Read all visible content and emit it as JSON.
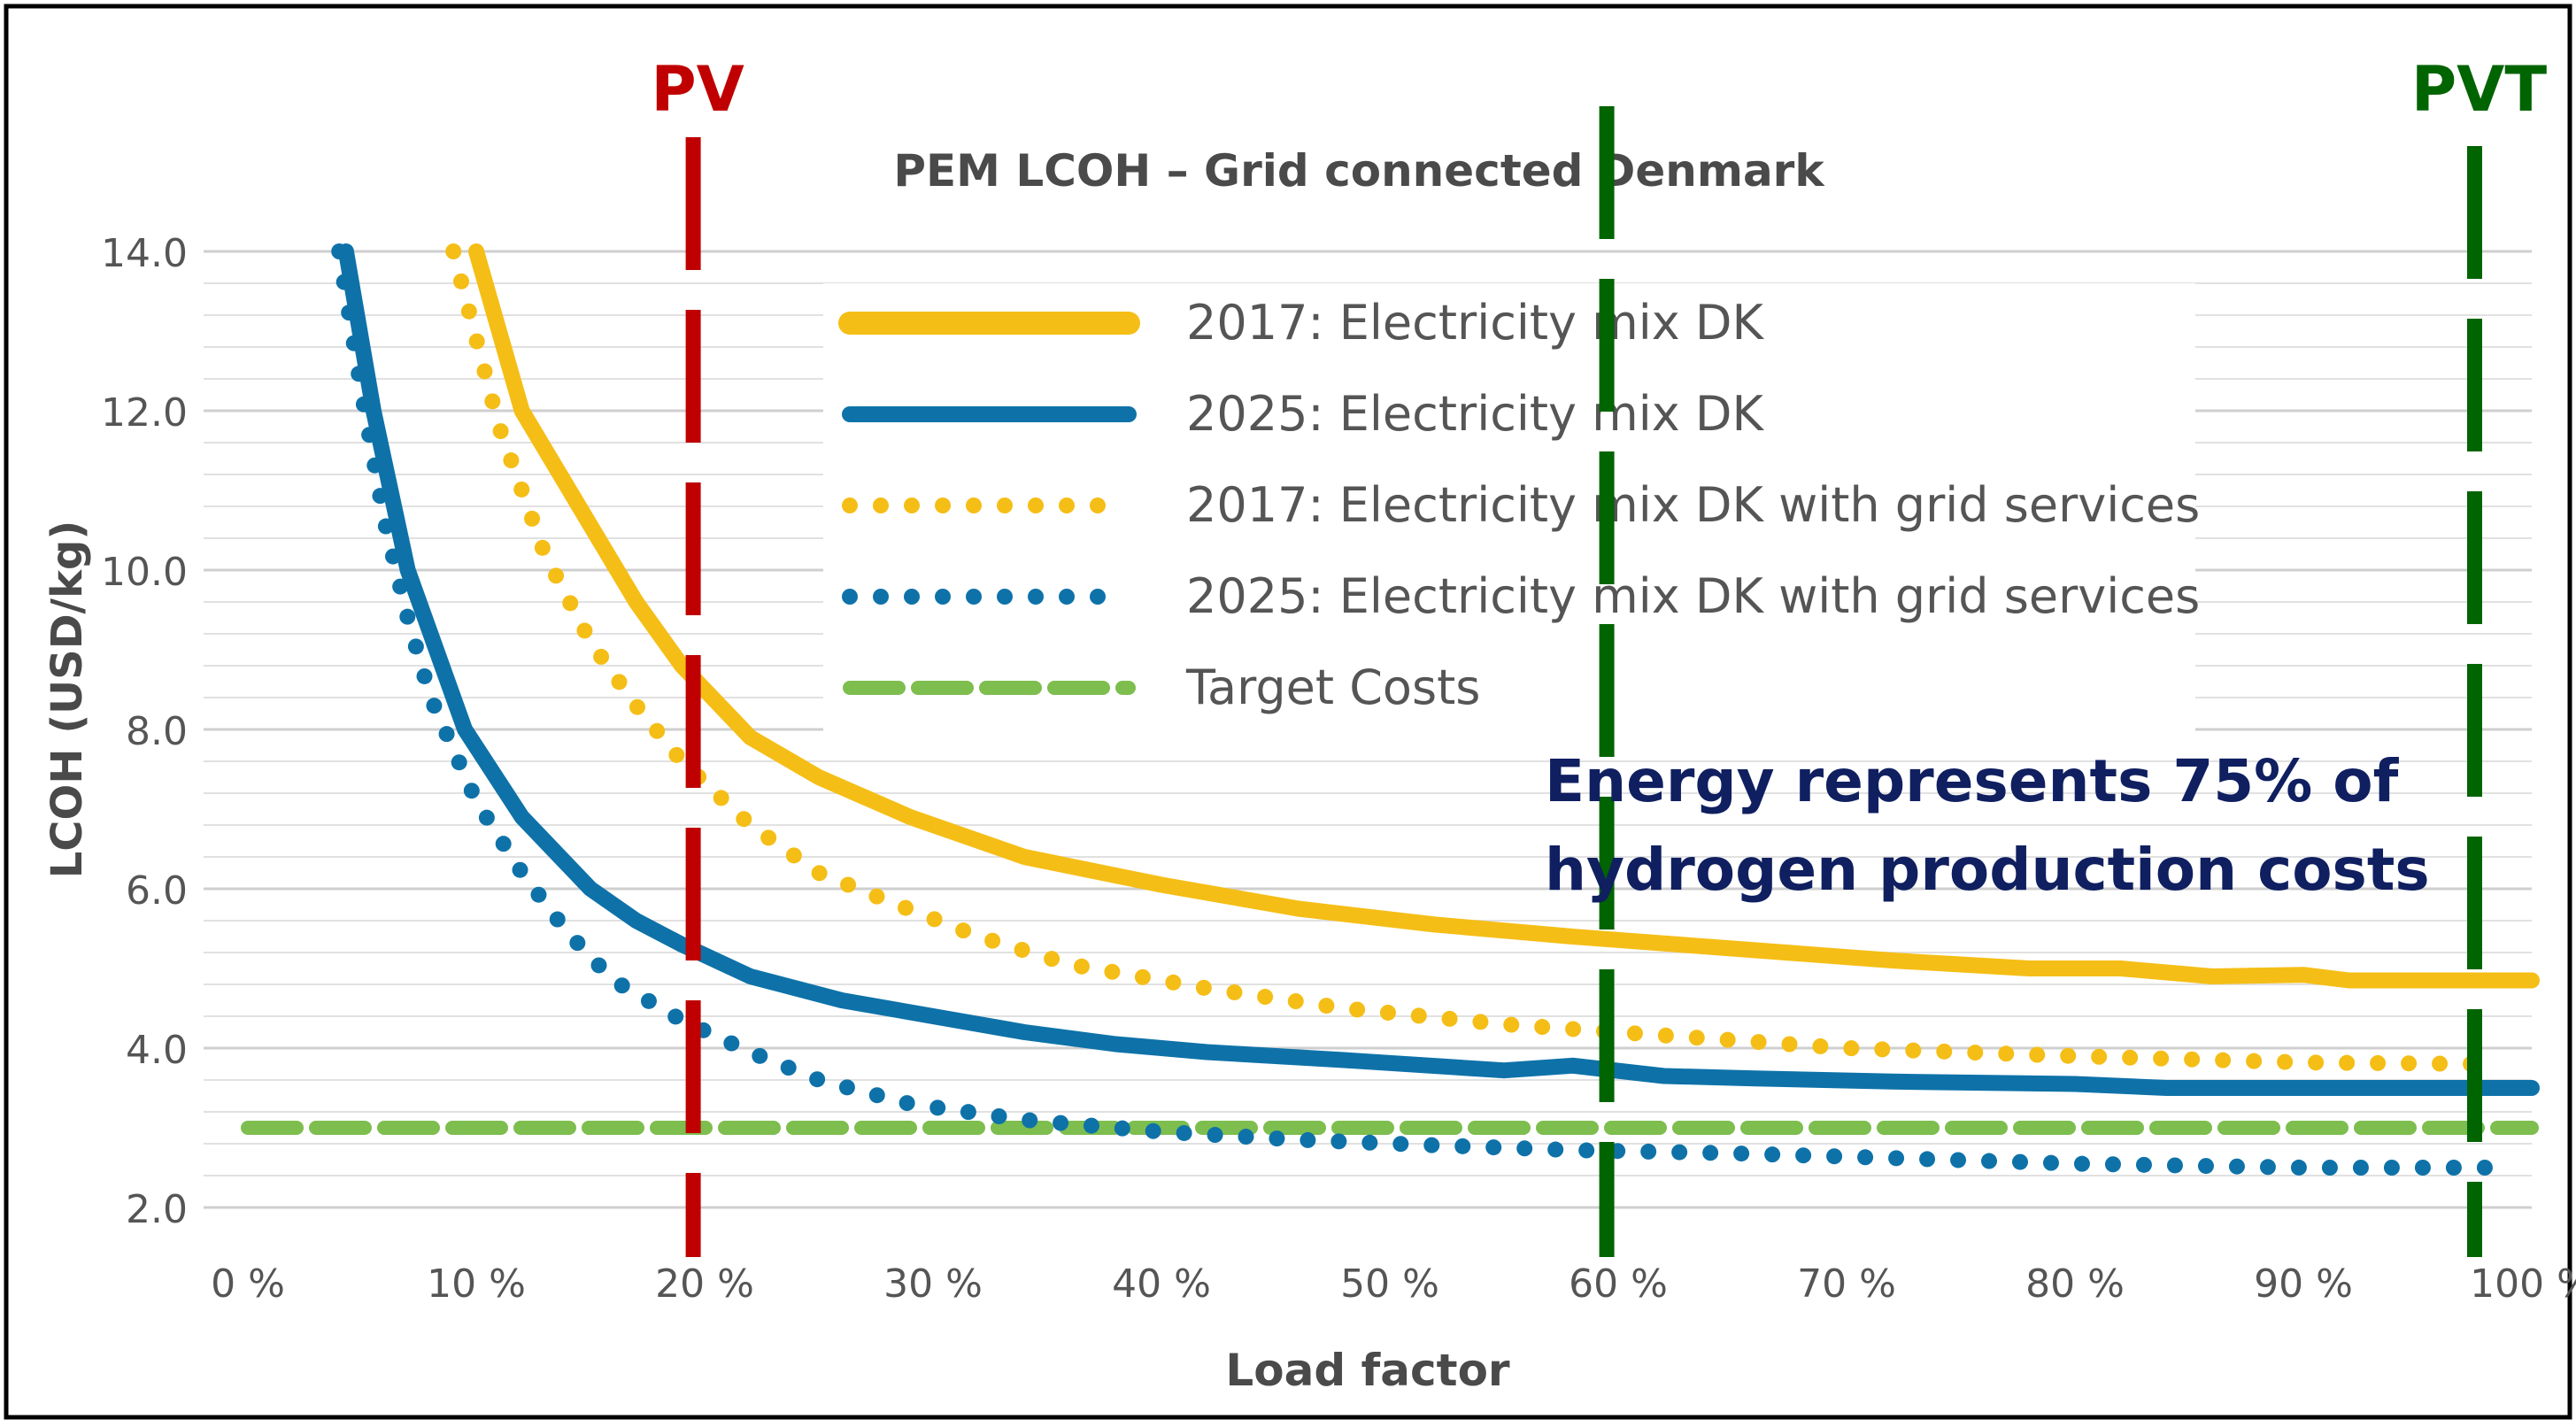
{
  "chart_data": {
    "type": "line",
    "title": "PEM LCOH – Grid connected Denmark",
    "xlabel": "Load factor",
    "ylabel": "LCOH (USD/kg)",
    "xlim": [
      0,
      100
    ],
    "ylim": [
      1.6,
      14.6
    ],
    "x_ticks": [
      0,
      10,
      20,
      30,
      40,
      50,
      60,
      70,
      80,
      90,
      100
    ],
    "x_tick_labels": [
      "0 %",
      "10 %",
      "20 %",
      "30 %",
      "40 %",
      "50 %",
      "60 %",
      "70 %",
      "80 %",
      "90 %",
      "100 %"
    ],
    "y_ticks": [
      2,
      4,
      6,
      8,
      10,
      12,
      14
    ],
    "y_tick_labels": [
      "2.0",
      "4.0",
      "6.0",
      "8.0",
      "10.0",
      "12.0",
      "14.0"
    ],
    "minor_grid_step": 0.4,
    "legend_position": "top-center",
    "series": [
      {
        "name": "2017: Electricity mix DK",
        "color": "#F5BE16",
        "style": "solid",
        "x": [
          10,
          12,
          17,
          19,
          22,
          25,
          29,
          34,
          40,
          46,
          52,
          58,
          65,
          72,
          78,
          82,
          86,
          90,
          92,
          100
        ],
        "y": [
          14.0,
          12.0,
          9.6,
          8.8,
          7.9,
          7.4,
          6.9,
          6.4,
          6.05,
          5.75,
          5.55,
          5.4,
          5.25,
          5.1,
          5.0,
          5.0,
          4.9,
          4.92,
          4.85,
          4.85
        ]
      },
      {
        "name": "2025: Electricity mix DK",
        "color": "#0E72A9",
        "style": "solid",
        "x": [
          4.3,
          5.5,
          7,
          9.5,
          12,
          15,
          17,
          19,
          22,
          26,
          30,
          34,
          38,
          42,
          48,
          55,
          58,
          62,
          66,
          72,
          80,
          84,
          90,
          100
        ],
        "y": [
          14.0,
          12.0,
          10.0,
          8.0,
          6.9,
          6.0,
          5.6,
          5.3,
          4.9,
          4.6,
          4.4,
          4.2,
          4.05,
          3.95,
          3.85,
          3.72,
          3.78,
          3.65,
          3.62,
          3.58,
          3.55,
          3.5,
          3.5,
          3.5
        ]
      },
      {
        "name": "2017: Electricity mix DK with grid services",
        "color": "#F5BE16",
        "style": "dotted",
        "x": [
          9,
          11,
          13,
          15,
          17,
          19,
          22,
          25,
          28,
          32,
          36,
          42,
          48,
          55,
          60,
          65,
          70,
          80,
          90,
          98
        ],
        "y": [
          14.0,
          11.8,
          10.2,
          9.1,
          8.3,
          7.6,
          6.8,
          6.2,
          5.85,
          5.4,
          5.05,
          4.75,
          4.5,
          4.3,
          4.2,
          4.1,
          4.0,
          3.9,
          3.82,
          3.8
        ]
      },
      {
        "name": "2025: Electricity mix DK with grid services",
        "color": "#0E72A9",
        "style": "dotted",
        "x": [
          4,
          5,
          6,
          7,
          8,
          10,
          12,
          14,
          16,
          19,
          22,
          25,
          29,
          34,
          40,
          46,
          52,
          58,
          65,
          72,
          80,
          90,
          98
        ],
        "y": [
          14.0,
          12.2,
          10.6,
          9.4,
          8.4,
          7.1,
          6.2,
          5.45,
          4.85,
          4.35,
          3.95,
          3.6,
          3.3,
          3.1,
          2.95,
          2.85,
          2.78,
          2.72,
          2.68,
          2.62,
          2.55,
          2.5,
          2.5
        ]
      },
      {
        "name": "Target Costs",
        "color": "#7DBE4E",
        "style": "dashed",
        "x": [
          0,
          100
        ],
        "y": [
          3.0,
          3.0
        ]
      }
    ],
    "reference_lines": [
      {
        "label": "PV",
        "x": 19.5,
        "color": "#C00000"
      },
      {
        "label": "",
        "x": 59.5,
        "color": "#006400"
      },
      {
        "label": "PVT",
        "x": 97.5,
        "color": "#006400"
      }
    ],
    "annotation": {
      "lines": [
        "Energy represents 75% of",
        "hydrogen production costs"
      ],
      "color": "#0F1F60"
    }
  }
}
